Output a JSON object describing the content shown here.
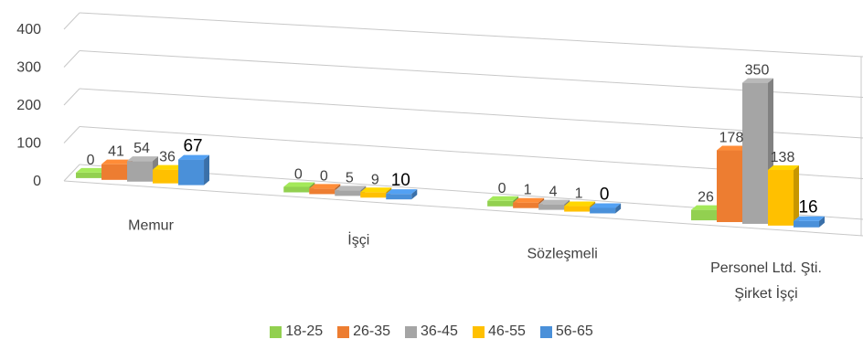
{
  "chart_data": {
    "type": "bar",
    "subtype": "clustered-3d",
    "title": "",
    "xlabel": "",
    "ylabel": "",
    "ylim": [
      0,
      400
    ],
    "y_ticks": [
      "0",
      "100",
      "200",
      "300",
      "400"
    ],
    "grid": true,
    "legend_position": "bottom",
    "categories": [
      "Memur",
      "İşçi",
      "Sözleşmeli",
      "Personel Ltd. Şti.\nŞirket İşçi"
    ],
    "series": [
      {
        "name": "18-25",
        "color": "#92d050",
        "values": [
          0,
          0,
          0,
          26
        ]
      },
      {
        "name": "26-35",
        "color": "#ed7d31",
        "values": [
          41,
          0,
          1,
          178
        ]
      },
      {
        "name": "36-45",
        "color": "#a5a5a5",
        "values": [
          54,
          5,
          4,
          350
        ]
      },
      {
        "name": "46-55",
        "color": "#ffc000",
        "values": [
          36,
          9,
          1,
          138
        ]
      },
      {
        "name": "56-65",
        "color": "#4a90d9",
        "values": [
          67,
          10,
          0,
          16
        ]
      }
    ]
  }
}
